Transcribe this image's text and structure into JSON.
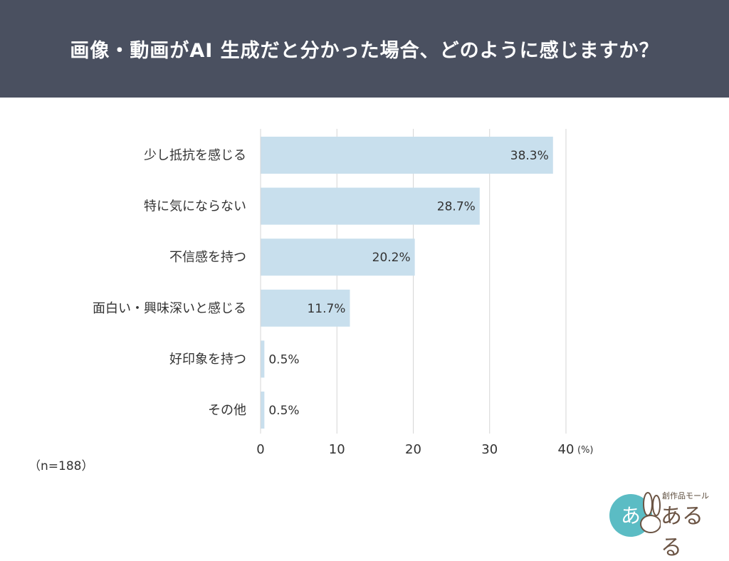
{
  "header": {
    "title": "画像・動画がAI 生成だと分かった場合、どのように感じますか？"
  },
  "note": "（n=188）",
  "logo": {
    "tagline": "創作品モール",
    "name": "あるる",
    "badge": "あ"
  },
  "colors": {
    "header_bg": "#4a5060",
    "bar": "#c8dfed",
    "grid": "#d6d6d6"
  },
  "chart_data": {
    "type": "bar",
    "orientation": "horizontal",
    "title": "画像・動画がAI 生成だと分かった場合、どのように感じますか？",
    "categories": [
      "少し抵抗を感じる",
      "特に気にならない",
      "不信感を持つ",
      "面白い・興味深いと感じる",
      "好印象を持つ",
      "その他"
    ],
    "values": [
      38.3,
      28.7,
      20.2,
      11.7,
      0.5,
      0.5
    ],
    "data_labels": [
      "38.3%",
      "28.7%",
      "20.2%",
      "11.7%",
      "0.5%",
      "0.5%"
    ],
    "xticks": [
      0,
      10,
      20,
      30,
      40
    ],
    "xtick_labels": [
      "0",
      "10",
      "20",
      "30",
      "40"
    ],
    "xunit": "(%)",
    "xlim": [
      0,
      40
    ],
    "grid": true
  }
}
